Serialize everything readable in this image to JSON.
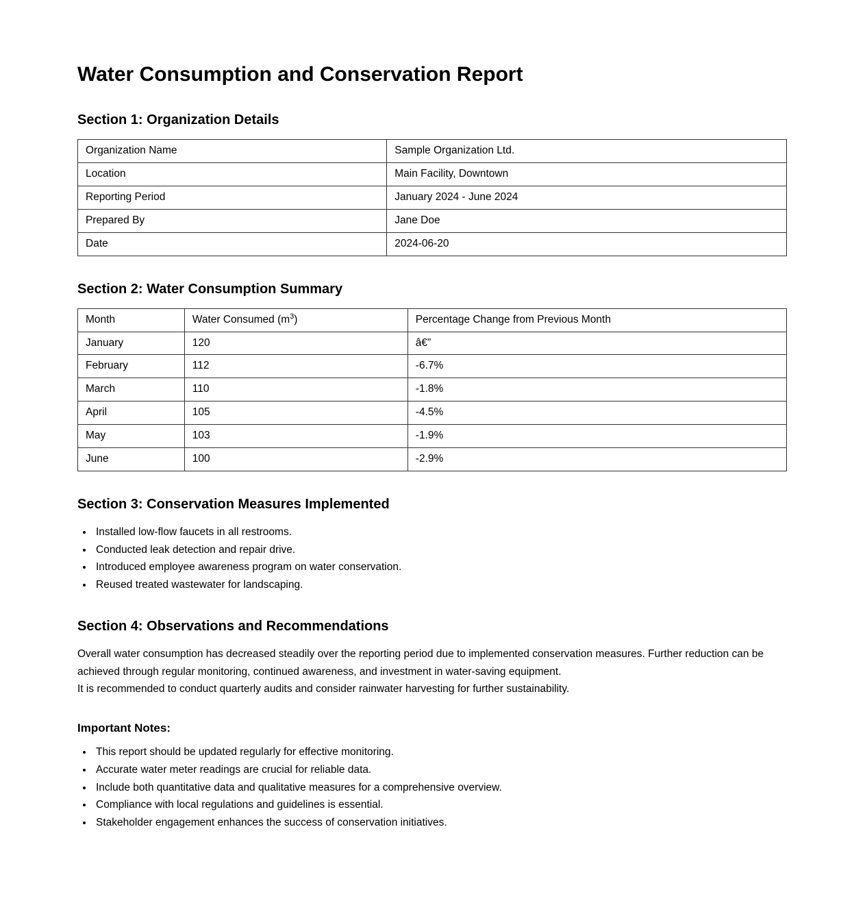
{
  "page": {
    "title": "Water Consumption and Conservation Report"
  },
  "section1": {
    "heading": "Section 1: Organization Details",
    "rows": [
      {
        "label": "Organization Name",
        "value": "Sample Organization Ltd."
      },
      {
        "label": "Location",
        "value": "Main Facility, Downtown"
      },
      {
        "label": "Reporting Period",
        "value": "January 2024 - June 2024"
      },
      {
        "label": "Prepared By",
        "value": "Jane Doe"
      },
      {
        "label": "Date",
        "value": "2024-06-20"
      }
    ]
  },
  "section2": {
    "heading": "Section 2: Water Consumption Summary",
    "columns": {
      "month": "Month",
      "consumed_pre": "Water Consumed (m",
      "consumed_sup": "3",
      "consumed_post": ")",
      "change": "Percentage Change from Previous Month"
    },
    "rows": [
      {
        "month": "January",
        "consumed": "120",
        "change": "â€”"
      },
      {
        "month": "February",
        "consumed": "112",
        "change": "-6.7%"
      },
      {
        "month": "March",
        "consumed": "110",
        "change": "-1.8%"
      },
      {
        "month": "April",
        "consumed": "105",
        "change": "-4.5%"
      },
      {
        "month": "May",
        "consumed": "103",
        "change": "-1.9%"
      },
      {
        "month": "June",
        "consumed": "100",
        "change": "-2.9%"
      }
    ]
  },
  "section3": {
    "heading": "Section 3: Conservation Measures Implemented",
    "items": [
      "Installed low-flow faucets in all restrooms.",
      "Conducted leak detection and repair drive.",
      "Introduced employee awareness program on water conservation.",
      "Reused treated wastewater for landscaping."
    ]
  },
  "section4": {
    "heading": "Section 4: Observations and Recommendations",
    "paragraph_1": "Overall water consumption has decreased steadily over the reporting period due to implemented conservation measures. Further reduction can be achieved through regular monitoring, continued awareness, and investment in water-saving equipment.",
    "paragraph_2": "It is recommended to conduct quarterly audits and consider rainwater harvesting for further sustainability."
  },
  "notes": {
    "heading": "Important Notes:",
    "items": [
      "This report should be updated regularly for effective monitoring.",
      "Accurate water meter readings are crucial for reliable data.",
      "Include both quantitative data and qualitative measures for a comprehensive overview.",
      "Compliance with local regulations and guidelines is essential.",
      "Stakeholder engagement enhances the success of conservation initiatives."
    ]
  }
}
